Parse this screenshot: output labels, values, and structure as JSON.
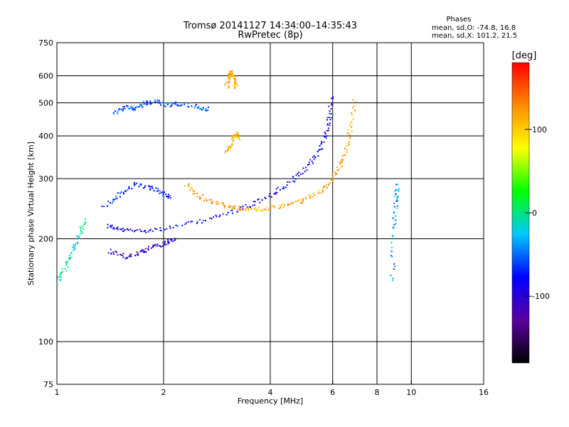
{
  "title_line1": "Tromsø 20141127 14:34:00–14:35:43",
  "title_line2": "RwPretec (8p)",
  "phases": {
    "heading": "Phases",
    "line1": "mean, sd,O: -74.8, 16.8",
    "line2": "mean, sd,X: 101.2, 21.5"
  },
  "colorbar": {
    "label": "[deg]",
    "ticks": [
      {
        "value": 100,
        "label": "100"
      },
      {
        "value": 0,
        "label": "0"
      },
      {
        "value": -100,
        "label": "-100"
      }
    ],
    "range": [
      -180,
      180
    ],
    "stops": [
      "#000000",
      "#5a00a0",
      "#0000ff",
      "#00c8ff",
      "#00ff00",
      "#ffff00",
      "#ff8c00",
      "#ff0000"
    ]
  },
  "chart_data": {
    "type": "scatter",
    "xlabel": "Frequency [MHz]",
    "ylabel": "Stationary phase Virtual Height [km]",
    "xscale": "log",
    "yscale": "log",
    "xlim": [
      1,
      16
    ],
    "ylim": [
      75,
      750
    ],
    "x_ticks": [
      {
        "value": 1,
        "label": "1"
      },
      {
        "value": 2,
        "label": "2"
      },
      {
        "value": 4,
        "label": "4"
      },
      {
        "value": 6,
        "label": "6"
      },
      {
        "value": 8,
        "label": "8"
      },
      {
        "value": 10,
        "label": "10"
      },
      {
        "value": 16,
        "label": "16"
      }
    ],
    "y_ticks": [
      {
        "value": 750,
        "label": "750"
      },
      {
        "value": 600,
        "label": "600"
      },
      {
        "value": 500,
        "label": "500"
      },
      {
        "value": 400,
        "label": "400"
      },
      {
        "value": 300,
        "label": "300"
      },
      {
        "value": 200,
        "label": "200"
      },
      {
        "value": 100,
        "label": "100"
      },
      {
        "value": 75,
        "label": "75"
      }
    ],
    "x_gridlines": [
      2,
      4,
      6,
      8,
      10
    ],
    "y_gridlines": [
      600,
      500,
      400,
      300,
      200,
      100
    ],
    "grid": true,
    "color_encoding": "phase [deg]",
    "traces": [
      {
        "x": [
          1.38,
          1.5,
          1.7,
          2.0,
          2.5,
          3.0,
          3.5,
          4.0,
          4.5,
          5.0,
          5.4,
          5.7,
          5.85,
          5.95
        ],
        "y": [
          220,
          213,
          212,
          215,
          225,
          238,
          252,
          270,
          292,
          320,
          355,
          400,
          450,
          530
        ],
        "phase": -85
      },
      {
        "x": [
          2.3,
          2.5,
          2.8,
          3.1,
          3.4,
          3.8,
          4.3,
          4.8,
          5.3,
          5.8,
          6.2,
          6.5,
          6.7,
          6.9
        ],
        "y": [
          290,
          268,
          255,
          248,
          245,
          245,
          250,
          258,
          270,
          290,
          320,
          360,
          420,
          520
        ],
        "phase": 120
      },
      {
        "x": [
          1.45,
          1.55,
          1.65,
          1.75,
          1.9,
          2.05,
          2.2,
          2.45,
          2.7
        ],
        "y": [
          470,
          490,
          480,
          500,
          505,
          495,
          500,
          490,
          480
        ],
        "phase": -55
      },
      {
        "x": [
          1.35,
          1.5,
          1.65,
          1.8,
          1.95,
          2.1
        ],
        "y": [
          250,
          270,
          290,
          285,
          275,
          265
        ],
        "phase": -70
      },
      {
        "x": [
          1.4,
          1.55,
          1.7,
          1.85,
          2.0,
          2.15
        ],
        "y": [
          185,
          178,
          182,
          190,
          195,
          200
        ],
        "phase": -105
      },
      {
        "x": [
          3.0,
          3.05,
          3.1,
          3.15,
          3.2
        ],
        "y": [
          560,
          600,
          620,
          585,
          550
        ],
        "phase": 115
      },
      {
        "x": [
          3.0,
          3.1,
          3.2,
          3.25
        ],
        "y": [
          360,
          385,
          410,
          395
        ],
        "phase": 110
      },
      {
        "x": [
          1.0,
          1.05,
          1.1,
          1.15,
          1.2
        ],
        "y": [
          150,
          165,
          185,
          205,
          230
        ],
        "phase": -10
      },
      {
        "x": [
          8.8,
          8.9,
          9.0,
          9.1
        ],
        "y": [
          150,
          220,
          260,
          290
        ],
        "phase": -40
      }
    ]
  }
}
